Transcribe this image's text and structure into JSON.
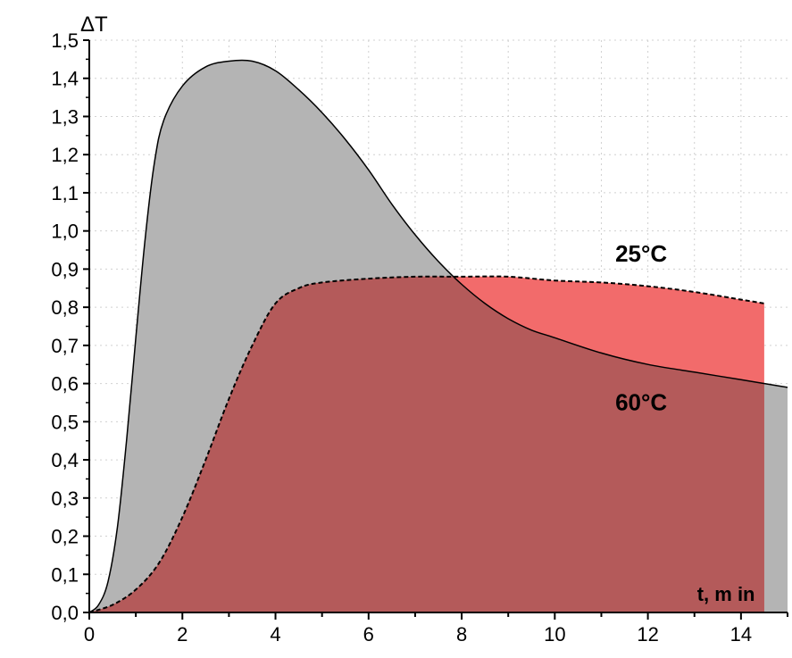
{
  "chart_data": {
    "type": "area",
    "ylabel": "ΔT",
    "xlabel": "t, m in",
    "xlim": [
      0,
      15
    ],
    "ylim": [
      0,
      1.5
    ],
    "grid": true,
    "x_ticks": [
      0,
      2,
      4,
      6,
      8,
      10,
      12,
      14
    ],
    "x_tick_labels": [
      "0",
      "2",
      "4",
      "6",
      "8",
      "10",
      "12",
      "14"
    ],
    "y_ticks": [
      0,
      0.1,
      0.2,
      0.3,
      0.4,
      0.5,
      0.6,
      0.7,
      0.8,
      0.9,
      1.0,
      1.1,
      1.2,
      1.3,
      1.4,
      1.5
    ],
    "y_tick_labels": [
      "0,0",
      "0,1",
      "0,2",
      "0,3",
      "0,4",
      "0,5",
      "0,6",
      "0,7",
      "0,8",
      "0,9",
      "1,0",
      "1,1",
      "1,2",
      "1,3",
      "1,4",
      "1,5"
    ],
    "series": [
      {
        "name": "60°C",
        "color": "#b4b4b4",
        "stroke": "#000000",
        "x": [
          0,
          0.2,
          0.4,
          0.6,
          0.8,
          1.0,
          1.2,
          1.4,
          1.6,
          2.0,
          2.5,
          3.0,
          3.5,
          4.0,
          4.5,
          5.0,
          5.5,
          6.0,
          6.5,
          7.0,
          7.5,
          8.0,
          8.5,
          9.0,
          9.5,
          10.0,
          11.0,
          12.0,
          13.0,
          14.0,
          15.0
        ],
        "y": [
          0,
          0.02,
          0.08,
          0.22,
          0.45,
          0.72,
          0.98,
          1.18,
          1.29,
          1.38,
          1.43,
          1.445,
          1.445,
          1.42,
          1.37,
          1.31,
          1.24,
          1.16,
          1.07,
          0.99,
          0.92,
          0.86,
          0.81,
          0.77,
          0.74,
          0.72,
          0.68,
          0.65,
          0.63,
          0.61,
          0.59
        ]
      },
      {
        "name": "25°C",
        "color": "#f26b6b",
        "stroke": "#000000",
        "x": [
          0,
          0.5,
          1.0,
          1.5,
          2.0,
          2.5,
          3.0,
          3.5,
          4.0,
          4.5,
          5.0,
          6.0,
          7.0,
          8.0,
          9.0,
          10.0,
          11.0,
          12.0,
          13.0,
          14.0,
          14.5
        ],
        "y": [
          0,
          0.02,
          0.06,
          0.13,
          0.25,
          0.4,
          0.56,
          0.7,
          0.81,
          0.85,
          0.865,
          0.875,
          0.88,
          0.88,
          0.88,
          0.87,
          0.865,
          0.855,
          0.84,
          0.82,
          0.81
        ]
      }
    ],
    "annotations": [
      "25°C",
      "60°C"
    ],
    "overlap_color": "#b45a5a"
  }
}
